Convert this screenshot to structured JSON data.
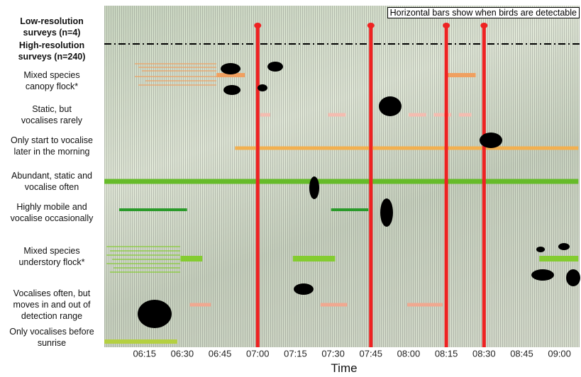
{
  "chart_data": {
    "type": "timeline",
    "annotation": "Horizontal bars show when birds are detectable",
    "x_label": "Time",
    "low_res_label": "Low-resolution\nsurveys (n=4)",
    "high_res_label": "High-resolution\nsurveys (n=240)",
    "low_res_surveys": [
      420,
      465,
      495,
      510
    ],
    "low_res_color": "#ee2222",
    "xlim": [
      359,
      548
    ],
    "xticks": [
      {
        "value": 375,
        "label": "06:15"
      },
      {
        "value": 390,
        "label": "06:30"
      },
      {
        "value": 405,
        "label": "06:45"
      },
      {
        "value": 420,
        "label": "07:00"
      },
      {
        "value": 435,
        "label": "07:15"
      },
      {
        "value": 450,
        "label": "07:30"
      },
      {
        "value": 465,
        "label": "07:45"
      },
      {
        "value": 480,
        "label": "08:00"
      },
      {
        "value": 495,
        "label": "08:15"
      },
      {
        "value": 510,
        "label": "08:30"
      },
      {
        "value": 525,
        "label": "08:45"
      },
      {
        "value": 540,
        "label": "09:00"
      }
    ],
    "series": [
      {
        "name": "Mixed species\ncanopy flock*",
        "color": "#f0a060",
        "segments": [
          [
            403.6,
            414.9
          ],
          [
            494.4,
            506.7
          ]
        ]
      },
      {
        "name": "Static, but\nvocalises rarely",
        "color": "#f4bcb0",
        "segments": [
          [
            421,
            425
          ],
          [
            448,
            455
          ],
          [
            480,
            487
          ],
          [
            490,
            497
          ],
          [
            500,
            505
          ]
        ]
      },
      {
        "name": "Only start to vocalise\nlater in the morning",
        "color": "#f2b050",
        "segments": [
          [
            411,
            547.5
          ]
        ]
      },
      {
        "name": "Abundant, static and\nvocalise often",
        "color": "#66bb2a",
        "segments": [
          [
            359,
            547.5
          ]
        ]
      },
      {
        "name": "Highly mobile and\nvocalise occasionally",
        "color": "#2a9a2a",
        "segments": [
          [
            364.9,
            391.9
          ],
          [
            449.2,
            464
          ]
        ]
      },
      {
        "name": "Mixed species\nunderstory flock*",
        "color": "#84cc30",
        "segments": [
          [
            389.3,
            398
          ],
          [
            434,
            450.8
          ],
          [
            532,
            547.5
          ]
        ]
      },
      {
        "name": "Vocalises often, but\nmoves in and out of\ndetection range",
        "color": "#f0a890",
        "segments": [
          [
            393,
            401.4
          ],
          [
            445,
            455.6
          ],
          [
            479.5,
            493.5
          ]
        ]
      },
      {
        "name": "Only vocalises before\nsunrise",
        "color": "#b4d040",
        "segments": [
          [
            359,
            388
          ]
        ]
      }
    ]
  }
}
